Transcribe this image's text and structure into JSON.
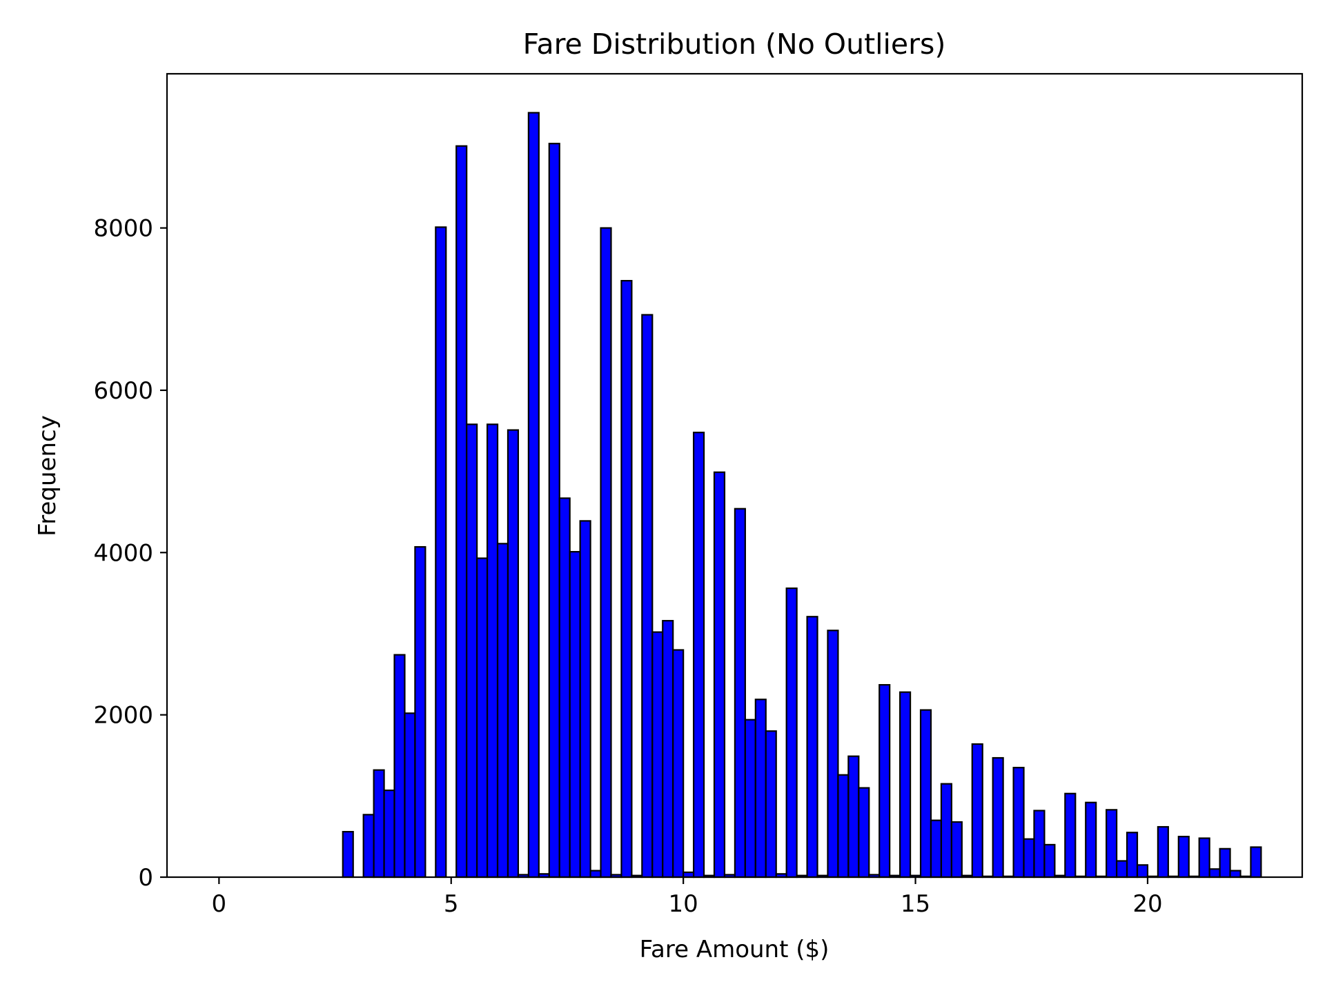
{
  "chart_data": {
    "type": "bar",
    "title": "Fare Distribution (No Outliers)",
    "xlabel": "Fare Amount ($)",
    "ylabel": "Frequency",
    "xlim": [
      -1.12,
      23.33
    ],
    "ylim": [
      0,
      9900
    ],
    "xticks": [
      0,
      5,
      10,
      15,
      20
    ],
    "xtick_labels": [
      "0",
      "5",
      "10",
      "15",
      "20"
    ],
    "yticks": [
      0,
      2000,
      4000,
      6000,
      8000
    ],
    "ytick_labels": [
      "0",
      "2000",
      "4000",
      "6000",
      "8000"
    ],
    "grid": false,
    "legend": "none",
    "bar_color": "#0000ff",
    "edge_color": "#000000",
    "bin_start": 0.0,
    "bin_width": 0.22222,
    "values": [
      0,
      0,
      0,
      0,
      0,
      0,
      0,
      0,
      0,
      0,
      0,
      0,
      560,
      0,
      770,
      1320,
      1070,
      2740,
      2020,
      4070,
      0,
      8010,
      0,
      9010,
      5580,
      3930,
      5580,
      4110,
      5510,
      30,
      9420,
      40,
      9040,
      4670,
      4010,
      4390,
      80,
      8000,
      30,
      7350,
      20,
      6930,
      3020,
      3160,
      2800,
      60,
      5480,
      20,
      4990,
      30,
      4540,
      1940,
      2190,
      1800,
      40,
      3560,
      20,
      3210,
      20,
      3040,
      1260,
      1490,
      1100,
      30,
      2370,
      20,
      2280,
      20,
      2060,
      700,
      1150,
      680,
      20,
      1640,
      10,
      1470,
      10,
      1350,
      470,
      820,
      400,
      20,
      1030,
      10,
      920,
      10,
      830,
      200,
      550,
      150,
      10,
      620,
      10,
      500,
      10,
      480,
      100,
      350,
      80,
      10,
      370
    ]
  }
}
